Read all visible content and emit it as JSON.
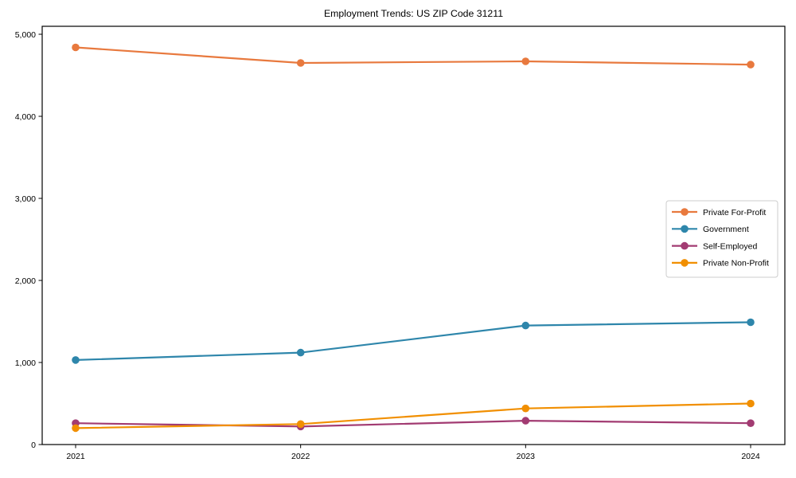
{
  "figure": {
    "background": "#ffffff",
    "frame_color": "#000000",
    "legend": {
      "border_color": "#cccccc",
      "background": "#ffffff",
      "position": "right-middle"
    }
  },
  "chart_data": {
    "type": "line",
    "title": "Employment Trends: US ZIP Code 31211",
    "xlabel": "",
    "ylabel": "",
    "x": [
      2021,
      2022,
      2023,
      2024
    ],
    "xtick_labels": [
      "2021",
      "2022",
      "2023",
      "2024"
    ],
    "ylim": [
      0,
      5000
    ],
    "yticks": [
      0,
      1000,
      2000,
      3000,
      4000,
      5000
    ],
    "ytick_labels": [
      "0",
      "1,000",
      "2,000",
      "3,000",
      "4,000",
      "5,000"
    ],
    "grid": false,
    "legend_position": "right-middle",
    "series": [
      {
        "name": "Private For-Profit",
        "color": "#E8793E",
        "values": [
          4840,
          4650,
          4670,
          4630
        ]
      },
      {
        "name": "Government",
        "color": "#2E86AB",
        "values": [
          1030,
          1120,
          1450,
          1490
        ]
      },
      {
        "name": "Self-Employed",
        "color": "#A23B72",
        "values": [
          260,
          220,
          290,
          260
        ]
      },
      {
        "name": "Private Non-Profit",
        "color": "#F18F01",
        "values": [
          200,
          250,
          440,
          500
        ]
      }
    ]
  }
}
